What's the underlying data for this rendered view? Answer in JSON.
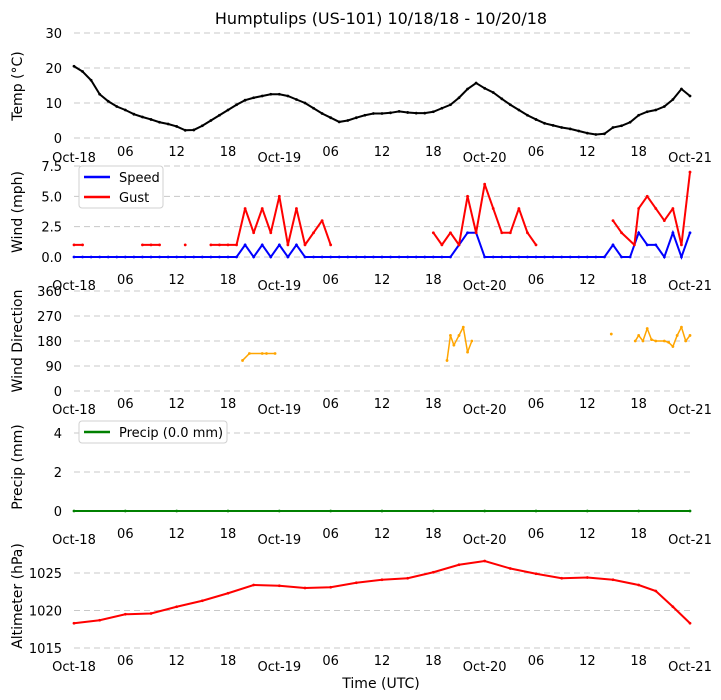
{
  "chart_data": [
    {
      "type": "line",
      "title": "Humptulips (US-101) 10/18/18 - 10/20/18",
      "xlabel": "Time (UTC)",
      "xunit": "hours since Oct-18 00:00 UTC",
      "xlim": [
        0,
        72
      ],
      "xticks": [
        0,
        6,
        12,
        18,
        24,
        30,
        36,
        42,
        48,
        54,
        60,
        66,
        72
      ],
      "xticklabels": [
        "Oct-18",
        "06",
        "12",
        "18",
        "Oct-19",
        "06",
        "12",
        "18",
        "Oct-20",
        "06",
        "12",
        "18",
        "Oct-21"
      ],
      "panels": [
        {
          "id": "temp",
          "ylabel": "Temp ($^\\circ$C)",
          "ylabel_display": "Temp (°C)",
          "ylim": [
            0,
            30
          ],
          "yticks": [
            0,
            10,
            20,
            30
          ],
          "yticklabels": [
            "0",
            "10",
            "20",
            "30"
          ],
          "grid": true,
          "series": [
            {
              "name": "Temp",
              "color": "#000000",
              "x": [
                0,
                1,
                2,
                3,
                4,
                5,
                6,
                7,
                8,
                9,
                10,
                11,
                12,
                13,
                14,
                15,
                16,
                17,
                18,
                19,
                20,
                21,
                22,
                23,
                24,
                25,
                26,
                27,
                28,
                29,
                30,
                31,
                32,
                33,
                34,
                35,
                36,
                37,
                38,
                39,
                40,
                41,
                42,
                43,
                44,
                45,
                46,
                47,
                48,
                49,
                50,
                51,
                52,
                53,
                54,
                55,
                56,
                57,
                58,
                59,
                60,
                61,
                62,
                63,
                64,
                65,
                66,
                67,
                68,
                69,
                70,
                71,
                72
              ],
              "y": [
                20.5,
                19,
                16.5,
                12.5,
                10.5,
                9,
                8,
                6.8,
                6,
                5.3,
                4.5,
                4,
                3.3,
                2.2,
                2.3,
                3.5,
                5,
                6.5,
                8,
                9.5,
                10.8,
                11.5,
                12,
                12.5,
                12.5,
                12,
                11,
                10,
                8.5,
                7,
                5.8,
                4.6,
                5,
                5.8,
                6.5,
                7,
                7,
                7.2,
                7.6,
                7.3,
                7.1,
                7.1,
                7.5,
                8.5,
                9.5,
                11.5,
                14,
                15.7,
                14.2,
                13,
                11.2,
                9.5,
                8,
                6.5,
                5.3,
                4.2,
                3.6,
                3,
                2.6,
                2,
                1.4,
                1,
                1.2,
                3,
                3.5,
                4.5,
                6.5,
                7.5,
                8,
                9,
                11,
                14,
                12
              ]
            }
          ]
        },
        {
          "id": "wind",
          "ylabel": "Wind (mph)",
          "ylim": [
            0,
            7.5
          ],
          "yticks": [
            0,
            2.5,
            5,
            7.5
          ],
          "yticklabels": [
            "0.0",
            "2.5",
            "5.0",
            "7.5"
          ],
          "grid": true,
          "legend": "top-left",
          "series": [
            {
              "name": "Speed",
              "color": "#0000ff",
              "x": [
                0,
                1,
                2,
                3,
                4,
                5,
                6,
                7,
                8,
                9,
                10,
                11,
                12,
                13,
                14,
                15,
                16,
                17,
                18,
                19,
                20,
                21,
                22,
                23,
                24,
                25,
                26,
                27,
                28,
                29,
                30,
                31,
                32,
                33,
                34,
                35,
                36,
                37,
                38,
                39,
                40,
                41,
                42,
                43,
                44,
                45,
                46,
                47,
                48,
                49,
                50,
                51,
                52,
                53,
                54,
                55,
                56,
                57,
                58,
                59,
                60,
                61,
                62,
                63,
                64,
                65,
                66,
                67,
                68,
                69,
                70,
                71,
                72
              ],
              "y": [
                0,
                0,
                0,
                0,
                0,
                0,
                0,
                0,
                0,
                0,
                0,
                0,
                0,
                0,
                0,
                0,
                0,
                0,
                0,
                0,
                1,
                0,
                1,
                0,
                1,
                0,
                1,
                0,
                0,
                0,
                0,
                0,
                0,
                0,
                0,
                0,
                0,
                0,
                0,
                0,
                0,
                0,
                0,
                0,
                0,
                1,
                2,
                2,
                0,
                0,
                0,
                0,
                0,
                0,
                0,
                0,
                0,
                0,
                0,
                0,
                0,
                0,
                0,
                1,
                0,
                0,
                2,
                1,
                1,
                0,
                2,
                0,
                2
              ]
            },
            {
              "name": "Gust",
              "color": "#ff0000",
              "x": [
                0,
                1,
                8,
                9,
                10,
                13,
                16,
                17,
                18,
                19,
                20,
                21,
                22,
                23,
                24,
                25,
                26,
                27,
                28,
                29,
                30,
                42,
                43,
                44,
                45,
                46,
                47,
                48,
                49,
                50,
                51,
                52,
                53,
                54,
                63,
                64,
                65.5,
                66,
                67,
                68,
                69,
                70,
                71,
                72
              ],
              "y": [
                1,
                1,
                1,
                1,
                1,
                1,
                1,
                1,
                1,
                1,
                4,
                2,
                4,
                2,
                5,
                1,
                4,
                1,
                2,
                3,
                1,
                2,
                1,
                2,
                1,
                5,
                2,
                6,
                4,
                2,
                2,
                4,
                2,
                1,
                3,
                2,
                1,
                4,
                5,
                4,
                3,
                4,
                1,
                7
              ]
            }
          ]
        },
        {
          "id": "direction",
          "ylabel": "Wind Direction",
          "ylim": [
            0,
            360
          ],
          "yticks": [
            0,
            90,
            180,
            270,
            360
          ],
          "yticklabels": [
            "0",
            "90",
            "180",
            "270",
            "360"
          ],
          "grid": true,
          "series": [
            {
              "name": "Direction",
              "color": "#ffa500",
              "x": [
                19.7,
                20.5,
                22,
                22.5,
                23.5,
                43.6,
                44,
                44.4,
                45,
                45.5,
                46,
                46.5,
                62.8,
                65.6,
                66,
                66.5,
                67,
                67.5,
                68,
                69,
                69.5,
                70,
                70.5,
                71,
                71.5,
                72
              ],
              "y": [
                110,
                135,
                135,
                135,
                135,
                110,
                200,
                165,
                200,
                230,
                140,
                180,
                205,
                180,
                200,
                180,
                225,
                185,
                180,
                180,
                175,
                160,
                200,
                230,
                180,
                200
              ]
            }
          ]
        },
        {
          "id": "precip",
          "ylabel": "Precip (mm)",
          "ylim": [
            0,
            4.6
          ],
          "yticks": [
            0,
            2,
            4
          ],
          "yticklabels": [
            "0",
            "2",
            "4"
          ],
          "grid": true,
          "legend": "top-left",
          "series": [
            {
              "name": "Precip (0.0 mm)",
              "color": "#008000",
              "x": [
                0,
                6,
                12,
                18,
                24,
                30,
                36,
                42,
                48,
                54,
                60,
                66,
                72
              ],
              "y": [
                0,
                0,
                0,
                0,
                0,
                0,
                0,
                0,
                0,
                0,
                0,
                0,
                0
              ]
            }
          ]
        },
        {
          "id": "altimeter",
          "ylabel": "Altimeter (hPa)",
          "ylim": [
            1015,
            1027
          ],
          "yticks": [
            1015,
            1020,
            1025
          ],
          "yticklabels": [
            "1015",
            "1020",
            "1025"
          ],
          "grid": true,
          "series": [
            {
              "name": "Altimeter",
              "color": "#ff0000",
              "x": [
                0,
                3,
                6,
                9,
                12,
                15,
                18,
                21,
                24,
                27,
                30,
                33,
                36,
                39,
                42,
                45,
                48,
                51,
                54,
                57,
                60,
                63,
                66,
                68,
                70,
                72
              ],
              "y": [
                1018.3,
                1018.7,
                1019.5,
                1019.6,
                1020.5,
                1021.3,
                1022.3,
                1023.4,
                1023.3,
                1023.0,
                1023.1,
                1023.7,
                1024.1,
                1024.3,
                1025.1,
                1026.1,
                1026.6,
                1025.6,
                1024.9,
                1024.3,
                1024.4,
                1024.1,
                1023.4,
                1022.6,
                1020.5,
                1018.3
              ]
            }
          ]
        }
      ]
    }
  ]
}
